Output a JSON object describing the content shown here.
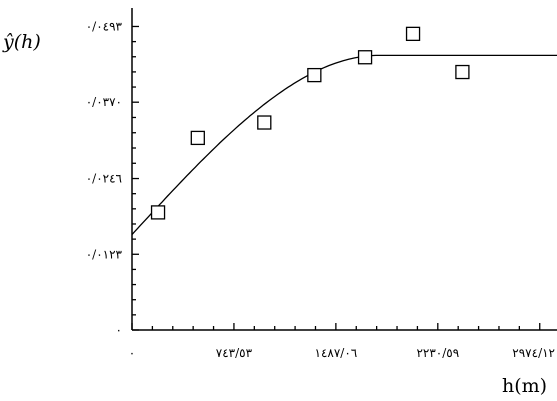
{
  "chart_data": {
    "type": "scatter",
    "title": "",
    "ylabel": "ŷ(h)",
    "xlabel": "h(m)",
    "x_tick_labels": [
      "٠",
      "٧٤٣/٥٣",
      "١٤٨٧/٠٦",
      "٢٢٣٠/٥٩",
      "٢٩٧٤/١٢"
    ],
    "x_tick_values": [
      0,
      743.53,
      1487.06,
      2230.59,
      2974.12
    ],
    "y_tick_labels": [
      "٠",
      "٠/٠١٢٣",
      "٠/٠٢٤٦",
      "٠/٠٣٧٠",
      "٠/٠٤٩٣"
    ],
    "y_tick_values": [
      0,
      0.0123,
      0.0246,
      0.037,
      0.0493
    ],
    "xlim": [
      0,
      3100
    ],
    "ylim": [
      0,
      0.0523
    ],
    "grid": false,
    "series": [
      {
        "kind": "points",
        "marker": "open-square",
        "x": [
          190,
          480,
          965,
          1330,
          1700,
          2050,
          2410
        ],
        "y": [
          0.0191,
          0.0312,
          0.0337,
          0.0414,
          0.0443,
          0.0481,
          0.0419
        ]
      },
      {
        "kind": "model-curve",
        "model": "spherical",
        "nugget": 0.0155,
        "sill": 0.0446,
        "range": 1800
      }
    ]
  }
}
